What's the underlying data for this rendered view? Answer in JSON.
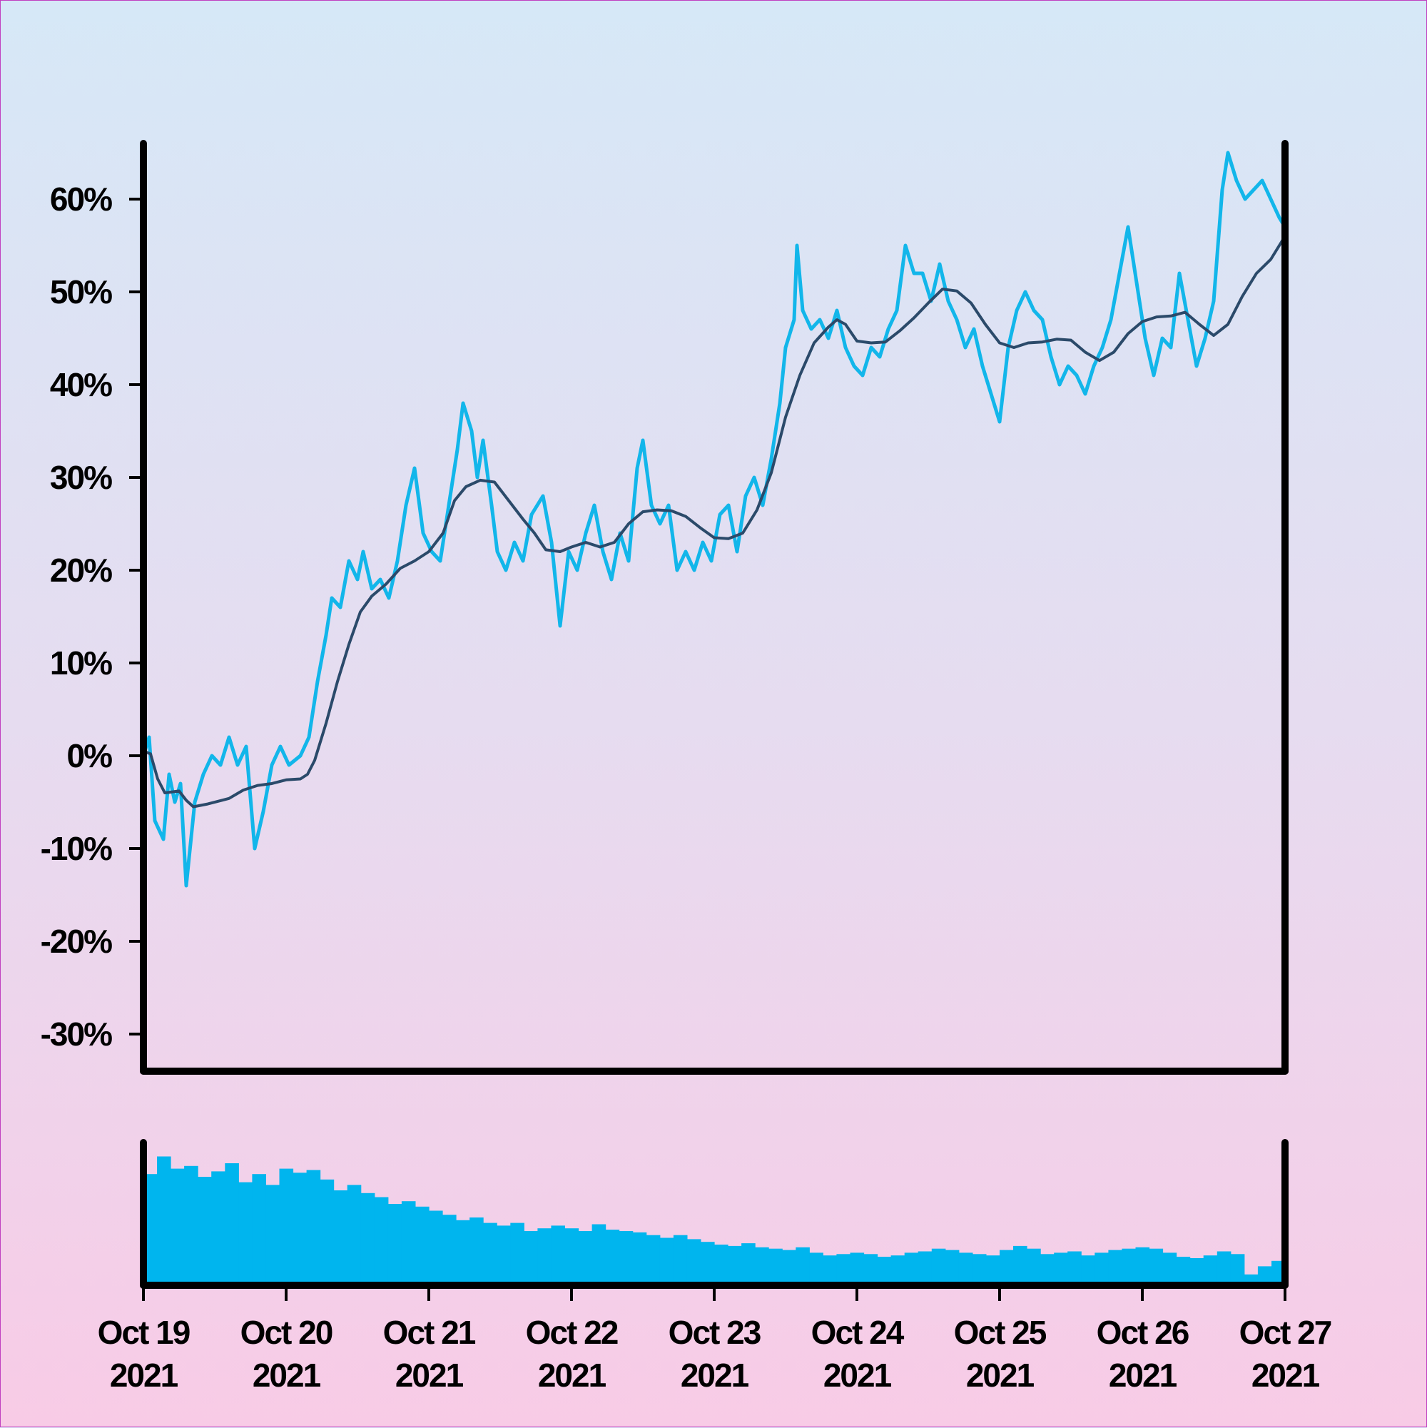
{
  "chart_data": {
    "type": "line",
    "y_tick_labels": [
      "60%",
      "50%",
      "40%",
      "30%",
      "20%",
      "10%",
      "0%",
      "-10%",
      "-20%",
      "-30%"
    ],
    "y_ticks": [
      60,
      50,
      40,
      30,
      20,
      10,
      0,
      -10,
      -20,
      -30
    ],
    "ylim": [
      -34,
      66
    ],
    "x_ticks": [
      {
        "day": 0,
        "line1": "Oct 19",
        "line2": "2021"
      },
      {
        "day": 1,
        "line1": "Oct 20",
        "line2": "2021"
      },
      {
        "day": 2,
        "line1": "Oct 21",
        "line2": "2021"
      },
      {
        "day": 3,
        "line1": "Oct 22",
        "line2": "2021"
      },
      {
        "day": 4,
        "line1": "Oct 23",
        "line2": "2021"
      },
      {
        "day": 5,
        "line1": "Oct 24",
        "line2": "2021"
      },
      {
        "day": 6,
        "line1": "Oct 25",
        "line2": "2021"
      },
      {
        "day": 7,
        "line1": "Oct 26",
        "line2": "2021"
      },
      {
        "day": 8,
        "line1": "Oct 27",
        "line2": "2021"
      }
    ],
    "xlim": [
      0,
      8
    ],
    "series": [
      {
        "role": "price",
        "color": "#12b6ea",
        "points": [
          [
            0.0,
            0
          ],
          [
            0.04,
            2
          ],
          [
            0.08,
            -7
          ],
          [
            0.14,
            -9
          ],
          [
            0.18,
            -2
          ],
          [
            0.22,
            -5
          ],
          [
            0.26,
            -3
          ],
          [
            0.3,
            -14
          ],
          [
            0.36,
            -5
          ],
          [
            0.42,
            -2
          ],
          [
            0.48,
            0
          ],
          [
            0.54,
            -1
          ],
          [
            0.6,
            2
          ],
          [
            0.66,
            -1
          ],
          [
            0.72,
            1
          ],
          [
            0.78,
            -10
          ],
          [
            0.84,
            -6
          ],
          [
            0.9,
            -1
          ],
          [
            0.96,
            1
          ],
          [
            1.02,
            -1
          ],
          [
            1.1,
            0
          ],
          [
            1.16,
            2
          ],
          [
            1.22,
            8
          ],
          [
            1.28,
            13
          ],
          [
            1.32,
            17
          ],
          [
            1.38,
            16
          ],
          [
            1.44,
            21
          ],
          [
            1.5,
            19
          ],
          [
            1.54,
            22
          ],
          [
            1.6,
            18
          ],
          [
            1.66,
            19
          ],
          [
            1.72,
            17
          ],
          [
            1.78,
            21
          ],
          [
            1.84,
            27
          ],
          [
            1.9,
            31
          ],
          [
            1.96,
            24
          ],
          [
            2.02,
            22
          ],
          [
            2.08,
            21
          ],
          [
            2.14,
            27
          ],
          [
            2.2,
            33
          ],
          [
            2.24,
            38
          ],
          [
            2.3,
            35
          ],
          [
            2.34,
            30
          ],
          [
            2.38,
            34
          ],
          [
            2.44,
            27
          ],
          [
            2.48,
            22
          ],
          [
            2.54,
            20
          ],
          [
            2.6,
            23
          ],
          [
            2.66,
            21
          ],
          [
            2.72,
            26
          ],
          [
            2.8,
            28
          ],
          [
            2.86,
            23
          ],
          [
            2.92,
            14
          ],
          [
            2.98,
            22
          ],
          [
            3.04,
            20
          ],
          [
            3.1,
            24
          ],
          [
            3.16,
            27
          ],
          [
            3.22,
            22
          ],
          [
            3.28,
            19
          ],
          [
            3.34,
            24
          ],
          [
            3.4,
            21
          ],
          [
            3.46,
            31
          ],
          [
            3.5,
            34
          ],
          [
            3.56,
            27
          ],
          [
            3.62,
            25
          ],
          [
            3.68,
            27
          ],
          [
            3.74,
            20
          ],
          [
            3.8,
            22
          ],
          [
            3.86,
            20
          ],
          [
            3.92,
            23
          ],
          [
            3.98,
            21
          ],
          [
            4.04,
            26
          ],
          [
            4.1,
            27
          ],
          [
            4.16,
            22
          ],
          [
            4.22,
            28
          ],
          [
            4.28,
            30
          ],
          [
            4.34,
            27
          ],
          [
            4.4,
            32
          ],
          [
            4.46,
            38
          ],
          [
            4.5,
            44
          ],
          [
            4.56,
            47
          ],
          [
            4.58,
            55
          ],
          [
            4.62,
            48
          ],
          [
            4.68,
            46
          ],
          [
            4.74,
            47
          ],
          [
            4.8,
            45
          ],
          [
            4.86,
            48
          ],
          [
            4.92,
            44
          ],
          [
            4.98,
            42
          ],
          [
            5.04,
            41
          ],
          [
            5.1,
            44
          ],
          [
            5.16,
            43
          ],
          [
            5.22,
            46
          ],
          [
            5.28,
            48
          ],
          [
            5.34,
            55
          ],
          [
            5.4,
            52
          ],
          [
            5.46,
            52
          ],
          [
            5.52,
            49
          ],
          [
            5.58,
            53
          ],
          [
            5.64,
            49
          ],
          [
            5.7,
            47
          ],
          [
            5.76,
            44
          ],
          [
            5.82,
            46
          ],
          [
            5.88,
            42
          ],
          [
            5.94,
            39
          ],
          [
            6.0,
            36
          ],
          [
            6.06,
            44
          ],
          [
            6.12,
            48
          ],
          [
            6.18,
            50
          ],
          [
            6.24,
            48
          ],
          [
            6.3,
            47
          ],
          [
            6.36,
            43
          ],
          [
            6.42,
            40
          ],
          [
            6.48,
            42
          ],
          [
            6.54,
            41
          ],
          [
            6.6,
            39
          ],
          [
            6.66,
            42
          ],
          [
            6.72,
            44
          ],
          [
            6.78,
            47
          ],
          [
            6.84,
            52
          ],
          [
            6.9,
            57
          ],
          [
            6.96,
            51
          ],
          [
            7.02,
            45
          ],
          [
            7.08,
            41
          ],
          [
            7.14,
            45
          ],
          [
            7.2,
            44
          ],
          [
            7.26,
            52
          ],
          [
            7.32,
            47
          ],
          [
            7.38,
            42
          ],
          [
            7.44,
            45
          ],
          [
            7.5,
            49
          ],
          [
            7.56,
            61
          ],
          [
            7.6,
            65
          ],
          [
            7.66,
            62
          ],
          [
            7.72,
            60
          ],
          [
            7.78,
            61
          ],
          [
            7.84,
            62
          ],
          [
            7.9,
            60
          ],
          [
            7.96,
            58
          ],
          [
            8.0,
            57
          ]
        ]
      },
      {
        "role": "moving-average",
        "color": "#2b4a6a",
        "points": [
          [
            0.0,
            0.5
          ],
          [
            0.05,
            0.2
          ],
          [
            0.1,
            -2.5
          ],
          [
            0.15,
            -4.0
          ],
          [
            0.25,
            -3.8
          ],
          [
            0.3,
            -4.8
          ],
          [
            0.35,
            -5.5
          ],
          [
            0.45,
            -5.2
          ],
          [
            0.55,
            -4.8
          ],
          [
            0.6,
            -4.6
          ],
          [
            0.7,
            -3.7
          ],
          [
            0.8,
            -3.2
          ],
          [
            0.9,
            -3.0
          ],
          [
            1.0,
            -2.6
          ],
          [
            1.1,
            -2.5
          ],
          [
            1.15,
            -2.0
          ],
          [
            1.2,
            -0.5
          ],
          [
            1.28,
            3.5
          ],
          [
            1.36,
            8.0
          ],
          [
            1.44,
            12.0
          ],
          [
            1.52,
            15.5
          ],
          [
            1.6,
            17.2
          ],
          [
            1.7,
            18.5
          ],
          [
            1.8,
            20.2
          ],
          [
            1.9,
            21.0
          ],
          [
            2.0,
            22.0
          ],
          [
            2.1,
            24.0
          ],
          [
            2.18,
            27.5
          ],
          [
            2.26,
            29.0
          ],
          [
            2.36,
            29.7
          ],
          [
            2.46,
            29.5
          ],
          [
            2.56,
            27.5
          ],
          [
            2.66,
            25.5
          ],
          [
            2.74,
            24.0
          ],
          [
            2.82,
            22.2
          ],
          [
            2.92,
            22.0
          ],
          [
            3.0,
            22.5
          ],
          [
            3.1,
            23.0
          ],
          [
            3.2,
            22.5
          ],
          [
            3.3,
            23.0
          ],
          [
            3.4,
            25.0
          ],
          [
            3.5,
            26.3
          ],
          [
            3.6,
            26.5
          ],
          [
            3.7,
            26.4
          ],
          [
            3.8,
            25.8
          ],
          [
            3.9,
            24.6
          ],
          [
            4.0,
            23.5
          ],
          [
            4.1,
            23.4
          ],
          [
            4.2,
            24.0
          ],
          [
            4.3,
            26.5
          ],
          [
            4.4,
            30.5
          ],
          [
            4.5,
            36.5
          ],
          [
            4.6,
            41.0
          ],
          [
            4.7,
            44.5
          ],
          [
            4.8,
            46.2
          ],
          [
            4.86,
            47.0
          ],
          [
            4.92,
            46.5
          ],
          [
            5.0,
            44.7
          ],
          [
            5.1,
            44.5
          ],
          [
            5.2,
            44.6
          ],
          [
            5.3,
            45.8
          ],
          [
            5.4,
            47.2
          ],
          [
            5.5,
            48.8
          ],
          [
            5.6,
            50.3
          ],
          [
            5.7,
            50.1
          ],
          [
            5.8,
            48.8
          ],
          [
            5.9,
            46.5
          ],
          [
            6.0,
            44.5
          ],
          [
            6.1,
            44.0
          ],
          [
            6.2,
            44.5
          ],
          [
            6.3,
            44.6
          ],
          [
            6.4,
            44.9
          ],
          [
            6.5,
            44.8
          ],
          [
            6.6,
            43.5
          ],
          [
            6.7,
            42.6
          ],
          [
            6.8,
            43.5
          ],
          [
            6.9,
            45.5
          ],
          [
            7.0,
            46.8
          ],
          [
            7.1,
            47.3
          ],
          [
            7.2,
            47.4
          ],
          [
            7.3,
            47.8
          ],
          [
            7.4,
            46.5
          ],
          [
            7.5,
            45.3
          ],
          [
            7.6,
            46.5
          ],
          [
            7.7,
            49.5
          ],
          [
            7.8,
            52.0
          ],
          [
            7.9,
            53.5
          ],
          [
            8.0,
            56.0
          ]
        ]
      }
    ],
    "volume": {
      "color": "#00b5ee",
      "relative_heights": [
        0.82,
        0.95,
        0.86,
        0.88,
        0.8,
        0.84,
        0.9,
        0.76,
        0.82,
        0.74,
        0.86,
        0.83,
        0.85,
        0.78,
        0.7,
        0.74,
        0.68,
        0.65,
        0.6,
        0.62,
        0.58,
        0.55,
        0.52,
        0.48,
        0.5,
        0.46,
        0.44,
        0.46,
        0.4,
        0.42,
        0.44,
        0.42,
        0.4,
        0.45,
        0.41,
        0.4,
        0.39,
        0.37,
        0.35,
        0.37,
        0.34,
        0.32,
        0.3,
        0.29,
        0.31,
        0.28,
        0.27,
        0.26,
        0.28,
        0.24,
        0.22,
        0.23,
        0.24,
        0.23,
        0.21,
        0.22,
        0.24,
        0.25,
        0.27,
        0.26,
        0.24,
        0.23,
        0.22,
        0.26,
        0.29,
        0.27,
        0.23,
        0.24,
        0.25,
        0.22,
        0.24,
        0.26,
        0.27,
        0.28,
        0.27,
        0.24,
        0.21,
        0.2,
        0.22,
        0.25,
        0.23,
        0.08,
        0.14,
        0.18
      ]
    }
  }
}
